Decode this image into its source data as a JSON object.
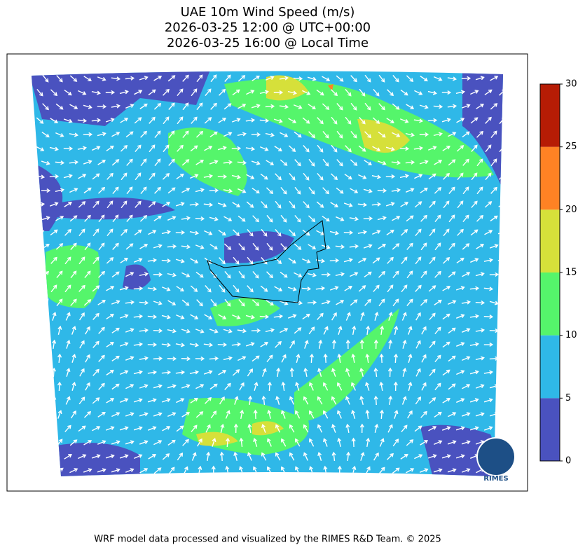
{
  "title": [
    "UAE 10m Wind Speed (m/s)",
    "2026-03-25 12:00 @ UTC+00:00",
    "2026-03-25 16:00 @ Local Time"
  ],
  "colorbar": {
    "ticks": [
      0,
      5,
      10,
      15,
      20,
      25,
      30
    ],
    "colors": [
      "#4a52bf",
      "#2fb8e8",
      "#55f56b",
      "#d6e03a",
      "#ff8224",
      "#b61c05"
    ]
  },
  "logo": "RIMES",
  "footer": "WRF model data processed and visualized by the RIMES R&D Team. © 2025"
}
